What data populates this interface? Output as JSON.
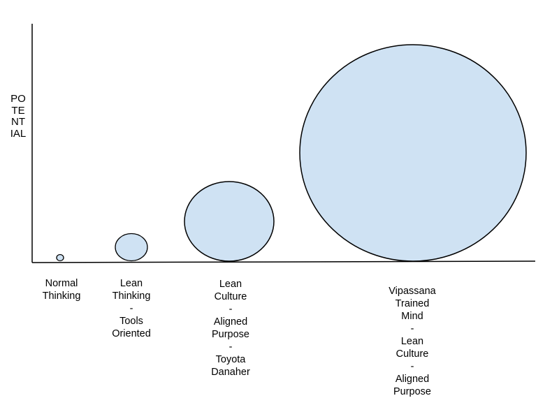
{
  "y_axis_label": "POTENTIAL",
  "stages": [
    {
      "label": "Normal\nThinking",
      "relative_size": 0.03
    },
    {
      "label": "Lean\nThinking\n-\nTools\nOriented",
      "relative_size": 0.14
    },
    {
      "label": "Lean\nCulture\n-\nAligned\nPurpose\n-\nToyota\nDanaher",
      "relative_size": 0.39
    },
    {
      "label": "Vipassana\nTrained\nMind\n-\nLean\nCulture\n-\nAligned\nPurpose",
      "relative_size": 1.0
    }
  ],
  "colors": {
    "circle_fill": "#cfe2f3",
    "stroke": "#000000"
  }
}
